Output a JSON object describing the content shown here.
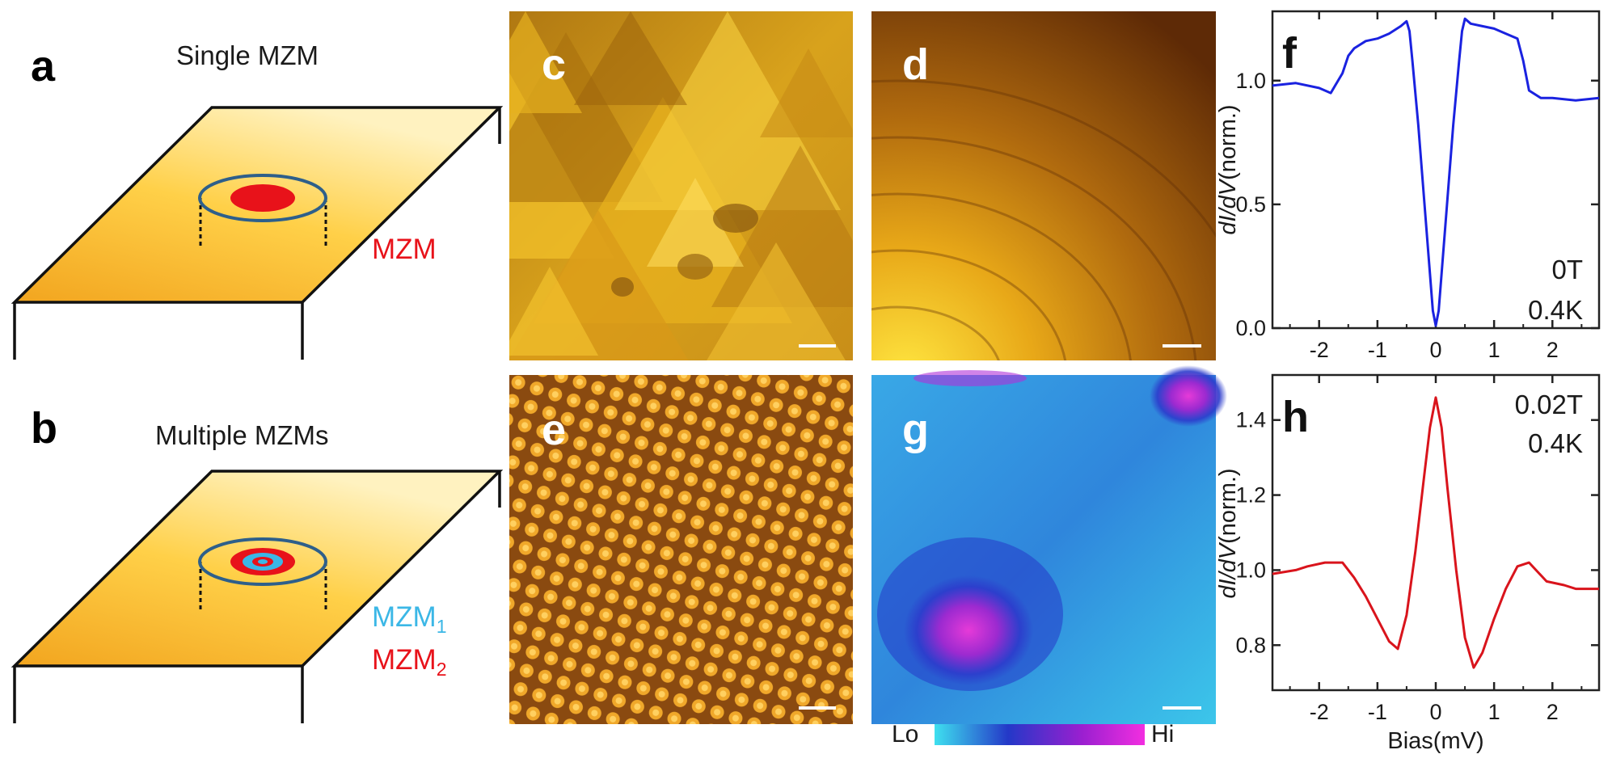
{
  "panels": {
    "a": {
      "label": "a",
      "title": "Single MZM",
      "mzm_label": "MZM",
      "mzm_color": "#e8121a"
    },
    "b": {
      "label": "b",
      "title": "Multiple MZMs",
      "mzm1": {
        "name": "MZM",
        "sub": "1",
        "color": "#3bb7e6"
      },
      "mzm2": {
        "name": "MZM",
        "sub": "2",
        "color": "#e8121a"
      }
    },
    "c": {
      "label": "c"
    },
    "d": {
      "label": "d"
    },
    "e": {
      "label": "e"
    },
    "g": {
      "label": "g",
      "colorbar": {
        "lo": "Lo",
        "hi": "Hi",
        "colors": [
          "#3ee0ef",
          "#2438c8",
          "#9a1fd0",
          "#f22ee0"
        ]
      }
    }
  },
  "colors": {
    "surface_light": "#ffd84a",
    "surface_dark": "#f0a020",
    "ring": "#2e5f8a",
    "curve_f": "#1a22e0",
    "curve_h": "#d9141c"
  },
  "chart_data": [
    {
      "id": "f",
      "type": "line",
      "label": "f",
      "annotations": [
        "0T",
        "0.4K"
      ],
      "xlabel": "",
      "ylabel_italic": "dI/dV",
      "ylabel_rest": "(norm.)",
      "xlim": [
        -2.8,
        2.8
      ],
      "ylim": [
        0.0,
        1.28
      ],
      "xticks": [
        -2,
        -1,
        0,
        1,
        2
      ],
      "yticks": [
        0.0,
        0.5,
        1.0
      ],
      "ytick_labels": [
        "0.0",
        "0.5",
        "1.0"
      ],
      "series": [
        {
          "color": "#1a22e0",
          "x": [
            -2.8,
            -2.4,
            -2.0,
            -1.8,
            -1.6,
            -1.5,
            -1.4,
            -1.2,
            -1.0,
            -0.8,
            -0.6,
            -0.5,
            -0.45,
            -0.4,
            -0.3,
            -0.2,
            -0.1,
            -0.05,
            0.0,
            0.05,
            0.1,
            0.2,
            0.3,
            0.4,
            0.45,
            0.5,
            0.6,
            0.8,
            1.0,
            1.2,
            1.4,
            1.5,
            1.6,
            1.8,
            2.0,
            2.4,
            2.8
          ],
          "y": [
            0.98,
            0.99,
            0.97,
            0.95,
            1.03,
            1.1,
            1.13,
            1.16,
            1.17,
            1.19,
            1.22,
            1.24,
            1.2,
            1.08,
            0.82,
            0.52,
            0.22,
            0.07,
            0.01,
            0.07,
            0.22,
            0.52,
            0.82,
            1.08,
            1.2,
            1.25,
            1.23,
            1.22,
            1.21,
            1.19,
            1.17,
            1.08,
            0.96,
            0.93,
            0.93,
            0.92,
            0.93
          ]
        }
      ]
    },
    {
      "id": "h",
      "type": "line",
      "label": "h",
      "annotations": [
        "0.02T",
        "0.4K"
      ],
      "xlabel": "Bias(mV)",
      "ylabel_italic": "dI/dV",
      "ylabel_rest": "(norm.)",
      "xlim": [
        -2.8,
        2.8
      ],
      "ylim": [
        0.68,
        1.52
      ],
      "xticks": [
        -2,
        -1,
        0,
        1,
        2
      ],
      "yticks": [
        0.8,
        1.0,
        1.2,
        1.4
      ],
      "ytick_labels": [
        "0.8",
        "1.0",
        "1.2",
        "1.4"
      ],
      "series": [
        {
          "color": "#d9141c",
          "x": [
            -2.8,
            -2.4,
            -2.2,
            -1.9,
            -1.6,
            -1.4,
            -1.2,
            -1.0,
            -0.8,
            -0.65,
            -0.5,
            -0.35,
            -0.2,
            -0.1,
            0.0,
            0.1,
            0.2,
            0.35,
            0.5,
            0.65,
            0.8,
            1.0,
            1.2,
            1.4,
            1.6,
            1.9,
            2.2,
            2.4,
            2.8
          ],
          "y": [
            0.99,
            1.0,
            1.01,
            1.02,
            1.02,
            0.98,
            0.93,
            0.87,
            0.81,
            0.79,
            0.88,
            1.05,
            1.25,
            1.38,
            1.46,
            1.38,
            1.22,
            1.0,
            0.82,
            0.74,
            0.78,
            0.87,
            0.95,
            1.01,
            1.02,
            0.97,
            0.96,
            0.95,
            0.95
          ]
        }
      ]
    }
  ]
}
